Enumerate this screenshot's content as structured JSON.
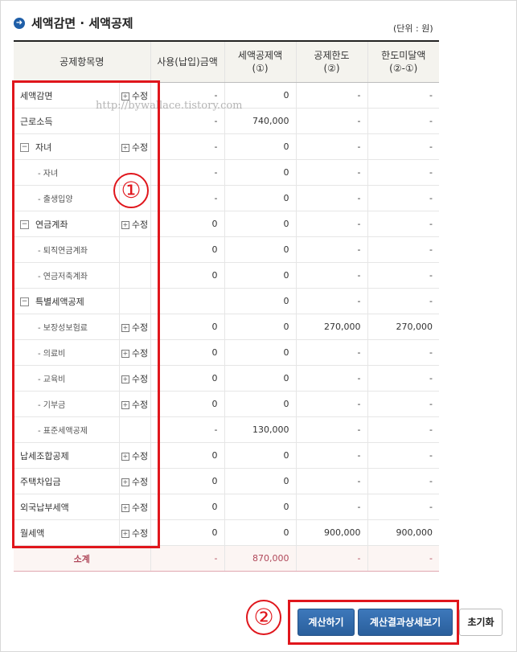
{
  "title": "세액감면 · 세액공제",
  "unit": "(단위 : 원)",
  "watermark": "http://bywallace.tistory.com",
  "headers": [
    "공제항목명",
    "사용(납입)금액",
    "세액공제액\n(①)",
    "공제한도\n(②)",
    "한도미달액\n(②-①)"
  ],
  "edit_label": "수정",
  "rows": [
    {
      "name": "세액감면",
      "level": 0,
      "toggle": false,
      "edit": true,
      "vals": [
        "-",
        "0",
        "-",
        "-"
      ]
    },
    {
      "name": "근로소득",
      "level": 0,
      "toggle": false,
      "edit": false,
      "vals": [
        "-",
        "740,000",
        "-",
        "-"
      ]
    },
    {
      "name": "자녀",
      "level": 0,
      "toggle": true,
      "edit": true,
      "vals": [
        "-",
        "0",
        "-",
        "-"
      ]
    },
    {
      "name": "- 자녀",
      "level": 1,
      "toggle": false,
      "edit": false,
      "vals": [
        "-",
        "0",
        "-",
        "-"
      ]
    },
    {
      "name": "- 출생입양",
      "level": 1,
      "toggle": false,
      "edit": false,
      "vals": [
        "-",
        "0",
        "-",
        "-"
      ]
    },
    {
      "name": "연금계좌",
      "level": 0,
      "toggle": true,
      "edit": true,
      "vals": [
        "0",
        "0",
        "-",
        "-"
      ]
    },
    {
      "name": "- 퇴직연금계좌",
      "level": 1,
      "toggle": false,
      "edit": false,
      "vals": [
        "0",
        "0",
        "-",
        "-"
      ]
    },
    {
      "name": "- 연금저축계좌",
      "level": 1,
      "toggle": false,
      "edit": false,
      "vals": [
        "0",
        "0",
        "-",
        "-"
      ]
    },
    {
      "name": "특별세액공제",
      "level": 0,
      "toggle": true,
      "edit": false,
      "vals": [
        "",
        "0",
        "-",
        "-"
      ]
    },
    {
      "name": "- 보장성보험료",
      "level": 1,
      "toggle": false,
      "edit": true,
      "vals": [
        "0",
        "0",
        "270,000",
        "270,000"
      ]
    },
    {
      "name": "- 의료비",
      "level": 1,
      "toggle": false,
      "edit": true,
      "vals": [
        "0",
        "0",
        "-",
        "-"
      ]
    },
    {
      "name": "- 교육비",
      "level": 1,
      "toggle": false,
      "edit": true,
      "vals": [
        "0",
        "0",
        "-",
        "-"
      ]
    },
    {
      "name": "- 기부금",
      "level": 1,
      "toggle": false,
      "edit": true,
      "vals": [
        "0",
        "0",
        "-",
        "-"
      ]
    },
    {
      "name": "- 표준세액공제",
      "level": 1,
      "toggle": false,
      "edit": false,
      "vals": [
        "-",
        "130,000",
        "-",
        "-"
      ]
    },
    {
      "name": "납세조합공제",
      "level": 0,
      "toggle": false,
      "edit": true,
      "vals": [
        "0",
        "0",
        "-",
        "-"
      ]
    },
    {
      "name": "주택차입금",
      "level": 0,
      "toggle": false,
      "edit": true,
      "vals": [
        "0",
        "0",
        "-",
        "-"
      ]
    },
    {
      "name": "외국납부세액",
      "level": 0,
      "toggle": false,
      "edit": true,
      "vals": [
        "0",
        "0",
        "-",
        "-"
      ]
    },
    {
      "name": "월세액",
      "level": 0,
      "toggle": false,
      "edit": true,
      "vals": [
        "0",
        "0",
        "900,000",
        "900,000"
      ]
    }
  ],
  "total": {
    "name": "소계",
    "vals": [
      "-",
      "870,000",
      "-",
      "-"
    ]
  },
  "annotations": {
    "one": "1",
    "two": "2"
  },
  "buttons": {
    "calc": "계산하기",
    "detail": "계산결과상세보기",
    "reset": "초기화"
  },
  "colors": {
    "highlight": "#e0161c",
    "button": "#2a5f9c",
    "total_text": "#b0485a"
  }
}
